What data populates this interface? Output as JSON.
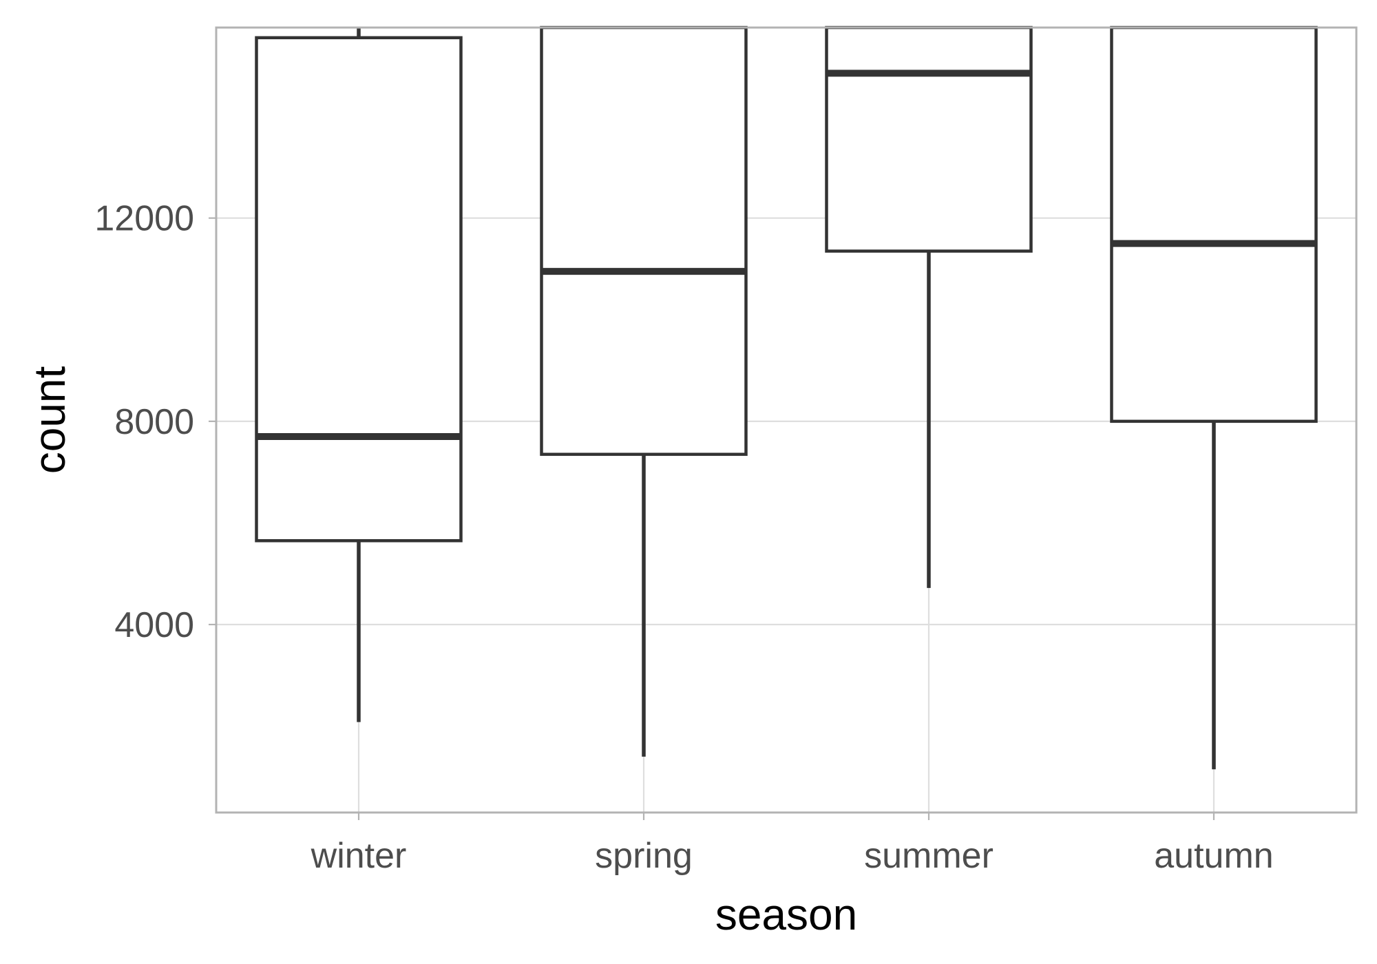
{
  "chart_data": {
    "type": "boxplot",
    "title": "",
    "xlabel": "season",
    "ylabel": "count",
    "categories": [
      "winter",
      "spring",
      "summer",
      "autumn"
    ],
    "boxes": [
      {
        "category": "winter",
        "whisker_low": 2080,
        "q1": 5650,
        "median": 7700,
        "q3": 15550,
        "whisker_high": 15750
      },
      {
        "category": "spring",
        "whisker_low": 1400,
        "q1": 7350,
        "median": 10950,
        "q3": 15750,
        "whisker_high": 15750
      },
      {
        "category": "summer",
        "whisker_low": 4720,
        "q1": 11350,
        "median": 14850,
        "q3": 15750,
        "whisker_high": 15750
      },
      {
        "category": "autumn",
        "whisker_low": 1150,
        "q1": 8000,
        "median": 11500,
        "q3": 15750,
        "whisker_high": 15750
      }
    ],
    "y_ticks": [
      4000,
      8000,
      12000
    ],
    "y_tick_labels": [
      "4000",
      "8000",
      "12000"
    ],
    "ylim": [
      300,
      15750
    ],
    "grid": true,
    "colors": {
      "box_stroke": "#333333",
      "box_fill": "#ffffff",
      "grid": "#dedede",
      "panel_border": "#b3b3b3",
      "tick_label": "#4d4d4d",
      "axis_title": "#000000"
    }
  }
}
